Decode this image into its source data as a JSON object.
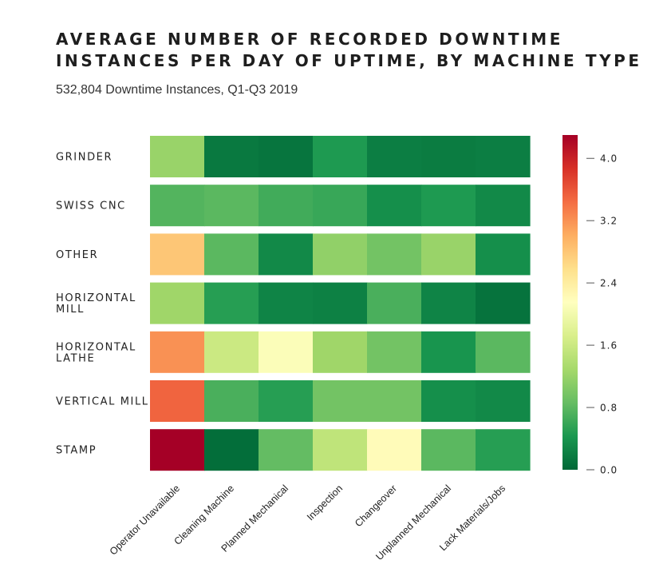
{
  "chart_data": {
    "type": "heatmap",
    "title": "AVERAGE NUMBER OF RECORDED DOWNTIME\nINSTANCES PER DAY OF UPTIME, BY MACHINE TYPE",
    "subtitle": "532,804 Downtime Instances, Q1-Q3 2019",
    "rows": [
      "GRINDER",
      "SWISS CNC",
      "OTHER",
      "HORIZONTAL\nMILL",
      "HORIZONTAL\nLATHE",
      "VERTICAL MILL",
      "STAMP"
    ],
    "columns": [
      "Operator Unavailable",
      "Cleaning Machine",
      "Planned Mechanical",
      "Inspection",
      "Changeover",
      "Unplanned Mechanical",
      "Lack Materials/Jobs"
    ],
    "values": [
      [
        1.2,
        0.15,
        0.12,
        0.45,
        0.2,
        0.18,
        0.2
      ],
      [
        0.75,
        0.8,
        0.65,
        0.6,
        0.35,
        0.45,
        0.3
      ],
      [
        2.8,
        0.8,
        0.3,
        1.15,
        0.95,
        1.2,
        0.35
      ],
      [
        1.25,
        0.5,
        0.25,
        0.22,
        0.7,
        0.25,
        0.1
      ],
      [
        3.2,
        1.6,
        2.1,
        1.25,
        0.95,
        0.4,
        0.8
      ],
      [
        3.5,
        0.7,
        0.5,
        0.95,
        0.95,
        0.35,
        0.3
      ],
      [
        4.3,
        0.05,
        0.85,
        1.5,
        2.2,
        0.8,
        0.5
      ]
    ],
    "colorbar": {
      "range": [
        0.0,
        4.3
      ],
      "ticks": [
        "0.0",
        "0.8",
        "1.6",
        "2.4",
        "3.2",
        "4.0"
      ],
      "colormap": "RdYlGn_r"
    }
  }
}
